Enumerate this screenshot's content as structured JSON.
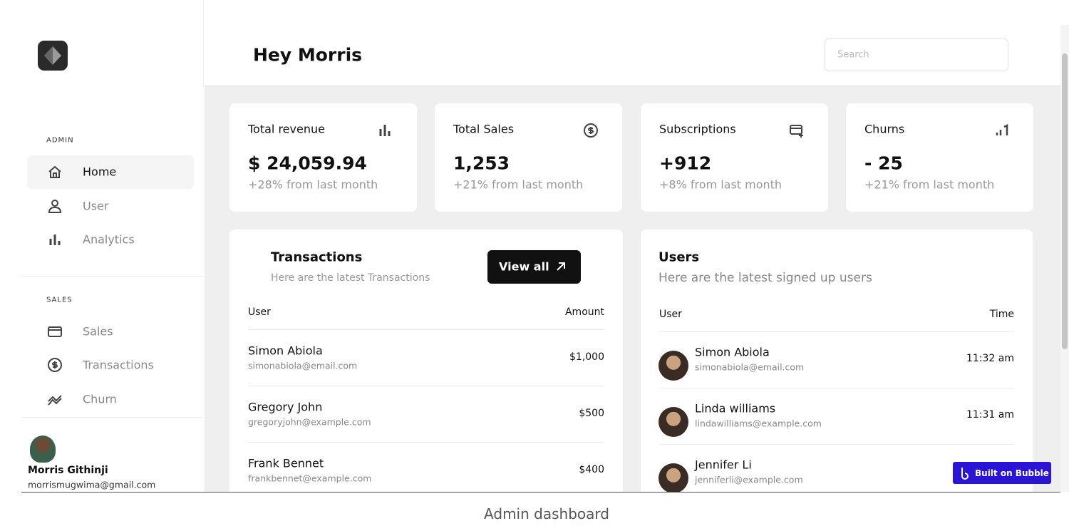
{
  "header": {
    "greeting": "Hey Morris",
    "search_placeholder": "Search"
  },
  "sidebar": {
    "sections": [
      {
        "label": "ADMIN",
        "items": [
          "Home",
          "User",
          "Analytics"
        ]
      },
      {
        "label": "SALES",
        "items": [
          "Sales",
          "Transactions",
          "Churn"
        ]
      }
    ],
    "user": {
      "name": "Morris Githinji",
      "email": "morrismugwima@gmail.com"
    }
  },
  "stats": [
    {
      "title": "Total revenue",
      "value": "$ 24,059.94",
      "change": "+28% from last month"
    },
    {
      "title": "Total Sales",
      "value": "1,253",
      "change": "+21% from last month"
    },
    {
      "title": "Subscriptions",
      "value": "+912",
      "change": "+8% from last month"
    },
    {
      "title": "Churns",
      "value": "- 25",
      "change": "+21% from last month"
    }
  ],
  "transactions": {
    "title": "Transactions",
    "subtitle": "Here are the latest Transactions",
    "button": "View all",
    "columns": [
      "User",
      "Amount"
    ],
    "rows": [
      {
        "name": "Simon Abiola",
        "email": "simonabiola@email.com",
        "amount": "$1,000"
      },
      {
        "name": "Gregory John",
        "email": "gregoryjohn@example.com",
        "amount": "$500"
      },
      {
        "name": "Frank Bennet",
        "email": "frankbennet@example.com",
        "amount": "$400"
      }
    ]
  },
  "users": {
    "title": "Users",
    "subtitle": "Here are the latest signed up users",
    "columns": [
      "User",
      "Time"
    ],
    "rows": [
      {
        "name": "Simon Abiola",
        "email": "simonabiola@email.com",
        "time": "11:32 am"
      },
      {
        "name": "Linda williams",
        "email": "lindawilliams@example.com",
        "time": "11:31 am"
      },
      {
        "name": "Jennifer Li",
        "email": "jenniferli@example.com",
        "time": ""
      }
    ]
  },
  "badge": "Built on Bubble",
  "caption": "Admin dashboard"
}
